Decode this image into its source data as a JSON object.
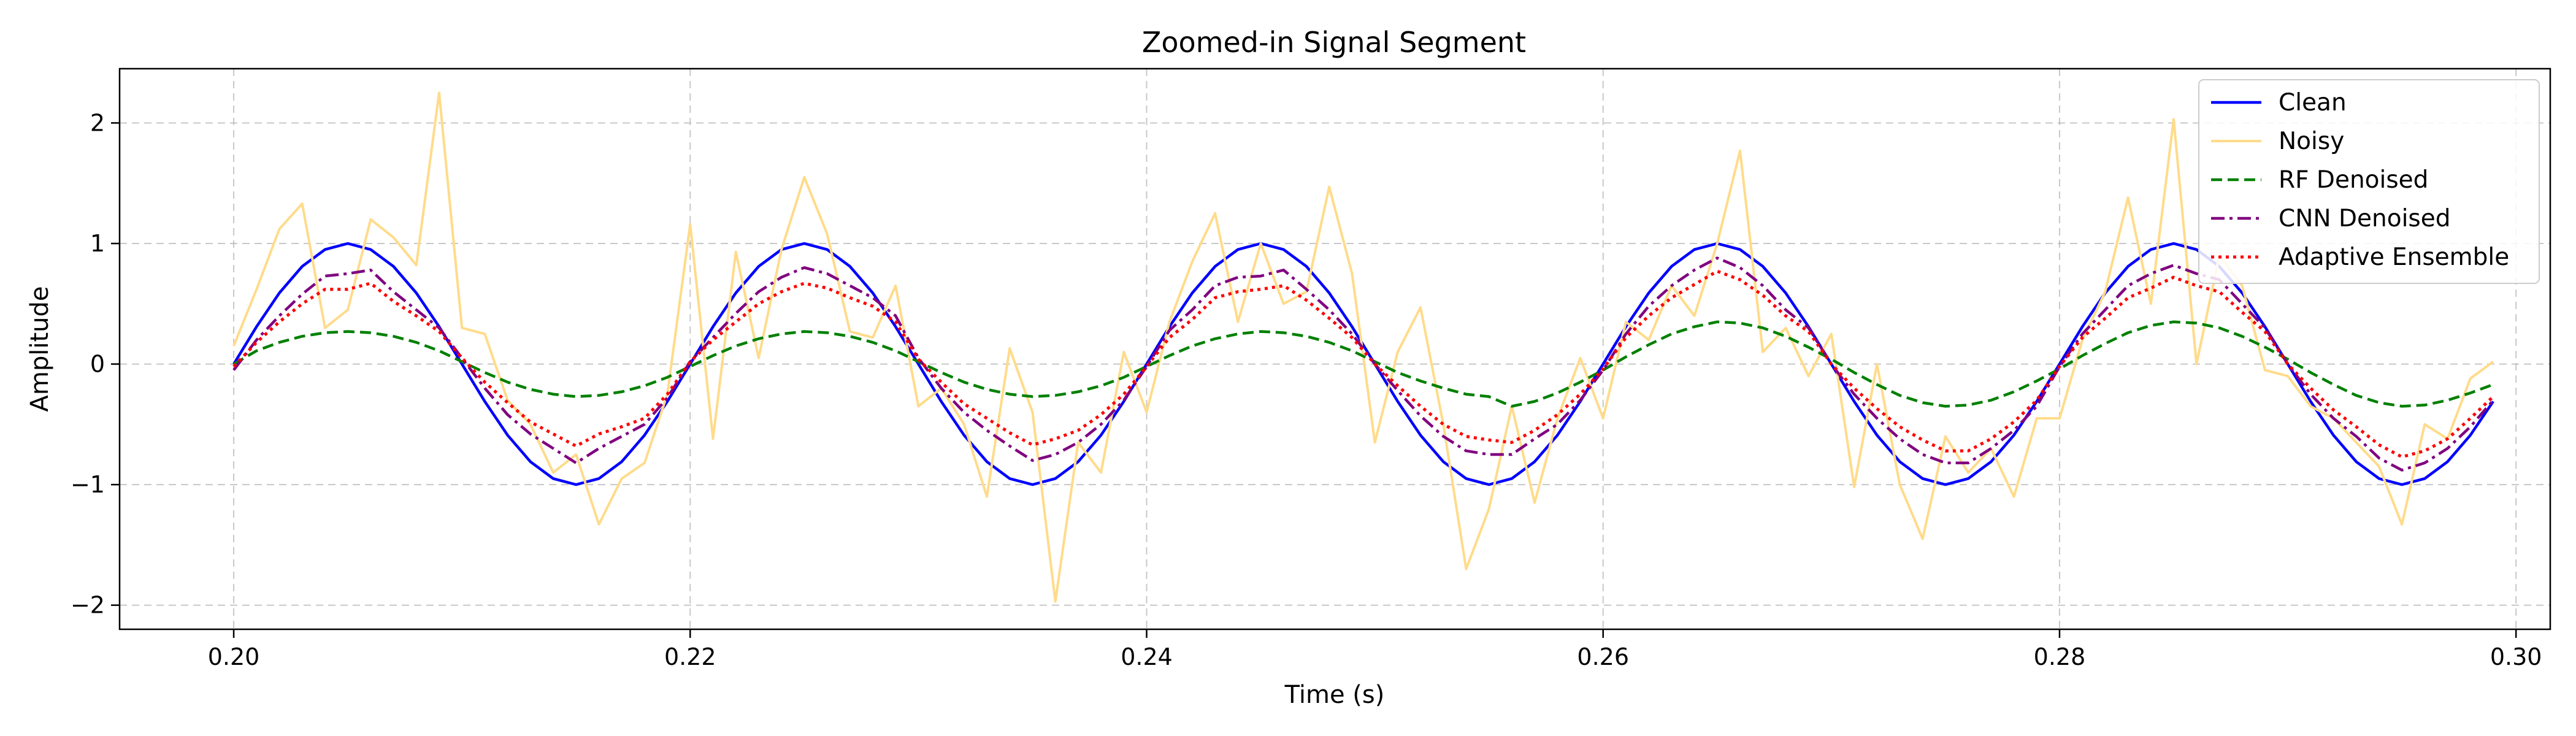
{
  "chart_data": {
    "type": "line",
    "title": "Zoomed-in Signal Segment",
    "xlabel": "Time (s)",
    "ylabel": "Amplitude",
    "xlim": [
      0.195,
      0.3015
    ],
    "ylim": [
      -2.2,
      2.45
    ],
    "grid": true,
    "legend_position": "top-right",
    "x_ticks": [
      0.2,
      0.22,
      0.24,
      0.26,
      0.28,
      0.3
    ],
    "x_tick_labels": [
      "0.20",
      "0.22",
      "0.24",
      "0.26",
      "0.28",
      "0.30"
    ],
    "y_ticks": [
      -2,
      -1,
      0,
      1,
      2
    ],
    "y_tick_labels": [
      "−2",
      "−1",
      "0",
      "1",
      "2"
    ],
    "x": [
      0.2,
      0.201,
      0.202,
      0.203,
      0.204,
      0.205,
      0.206,
      0.207,
      0.208,
      0.209,
      0.21,
      0.211,
      0.212,
      0.213,
      0.214,
      0.215,
      0.216,
      0.217,
      0.218,
      0.219,
      0.22,
      0.221,
      0.222,
      0.223,
      0.224,
      0.225,
      0.226,
      0.227,
      0.228,
      0.229,
      0.23,
      0.231,
      0.232,
      0.233,
      0.234,
      0.235,
      0.236,
      0.237,
      0.238,
      0.239,
      0.24,
      0.241,
      0.242,
      0.243,
      0.244,
      0.245,
      0.246,
      0.247,
      0.248,
      0.249,
      0.25,
      0.251,
      0.252,
      0.253,
      0.254,
      0.255,
      0.256,
      0.257,
      0.258,
      0.259,
      0.26,
      0.261,
      0.262,
      0.263,
      0.264,
      0.265,
      0.266,
      0.267,
      0.268,
      0.269,
      0.27,
      0.271,
      0.272,
      0.273,
      0.274,
      0.275,
      0.276,
      0.277,
      0.278,
      0.279,
      0.28,
      0.281,
      0.282,
      0.283,
      0.284,
      0.285,
      0.286,
      0.287,
      0.288,
      0.289,
      0.29,
      0.291,
      0.292,
      0.293,
      0.294,
      0.295,
      0.296,
      0.297,
      0.298,
      0.299
    ],
    "series": [
      {
        "name": "Clean",
        "color": "#0000ff",
        "style": "solid",
        "values": [
          0.0,
          0.31,
          0.59,
          0.81,
          0.95,
          1.0,
          0.95,
          0.81,
          0.59,
          0.31,
          0.0,
          -0.31,
          -0.59,
          -0.81,
          -0.95,
          -1.0,
          -0.95,
          -0.81,
          -0.59,
          -0.31,
          0.0,
          0.31,
          0.59,
          0.81,
          0.95,
          1.0,
          0.95,
          0.81,
          0.59,
          0.31,
          0.0,
          -0.31,
          -0.59,
          -0.81,
          -0.95,
          -1.0,
          -0.95,
          -0.81,
          -0.59,
          -0.31,
          0.0,
          0.31,
          0.59,
          0.81,
          0.95,
          1.0,
          0.95,
          0.81,
          0.59,
          0.31,
          0.0,
          -0.31,
          -0.59,
          -0.81,
          -0.95,
          -1.0,
          -0.95,
          -0.81,
          -0.59,
          -0.31,
          0.0,
          0.31,
          0.59,
          0.81,
          0.95,
          1.0,
          0.95,
          0.81,
          0.59,
          0.31,
          0.0,
          -0.31,
          -0.59,
          -0.81,
          -0.95,
          -1.0,
          -0.95,
          -0.81,
          -0.59,
          -0.31,
          0.0,
          0.31,
          0.59,
          0.81,
          0.95,
          1.0,
          0.95,
          0.81,
          0.59,
          0.31,
          0.0,
          -0.31,
          -0.59,
          -0.81,
          -0.95,
          -1.0,
          -0.95,
          -0.81,
          -0.59,
          -0.31
        ]
      },
      {
        "name": "Noisy",
        "color": "#ffdb8a",
        "style": "solid",
        "values": [
          0.15,
          0.62,
          1.12,
          1.33,
          0.3,
          0.45,
          1.2,
          1.05,
          0.82,
          2.25,
          0.3,
          0.25,
          -0.3,
          -0.5,
          -0.9,
          -0.75,
          -1.33,
          -0.95,
          -0.82,
          -0.25,
          1.16,
          -0.62,
          0.93,
          0.05,
          0.95,
          1.55,
          1.08,
          0.27,
          0.22,
          0.65,
          -0.35,
          -0.2,
          -0.5,
          -1.1,
          0.13,
          -0.4,
          -1.97,
          -0.65,
          -0.9,
          0.1,
          -0.4,
          0.35,
          0.85,
          1.25,
          0.35,
          1.0,
          0.5,
          0.6,
          1.47,
          0.75,
          -0.65,
          0.1,
          0.47,
          -0.5,
          -1.7,
          -1.2,
          -0.35,
          -1.15,
          -0.45,
          0.05,
          -0.45,
          0.35,
          0.2,
          0.65,
          0.4,
          1.0,
          1.77,
          0.1,
          0.3,
          -0.1,
          0.25,
          -1.02,
          0.0,
          -1.0,
          -1.45,
          -0.6,
          -0.9,
          -0.7,
          -1.1,
          -0.45,
          -0.45,
          0.2,
          0.6,
          1.38,
          0.5,
          2.03,
          0.0,
          0.9,
          0.65,
          -0.05,
          -0.1,
          -0.35,
          -0.45,
          -0.65,
          -0.85,
          -1.33,
          -0.5,
          -0.62,
          -0.12,
          0.02
        ]
      },
      {
        "name": "RF Denoised",
        "color": "#008000",
        "style": "dashed",
        "values": [
          0.0,
          0.11,
          0.18,
          0.23,
          0.26,
          0.27,
          0.26,
          0.23,
          0.18,
          0.11,
          0.02,
          -0.07,
          -0.15,
          -0.21,
          -0.25,
          -0.27,
          -0.26,
          -0.23,
          -0.18,
          -0.11,
          -0.02,
          0.07,
          0.15,
          0.21,
          0.25,
          0.27,
          0.26,
          0.23,
          0.18,
          0.11,
          0.02,
          -0.07,
          -0.15,
          -0.21,
          -0.25,
          -0.27,
          -0.26,
          -0.23,
          -0.18,
          -0.11,
          -0.02,
          0.07,
          0.15,
          0.21,
          0.25,
          0.27,
          0.26,
          0.23,
          0.18,
          0.11,
          0.02,
          -0.07,
          -0.14,
          -0.2,
          -0.25,
          -0.27,
          -0.35,
          -0.31,
          -0.24,
          -0.15,
          -0.05,
          0.06,
          0.16,
          0.25,
          0.31,
          0.35,
          0.34,
          0.3,
          0.23,
          0.14,
          0.04,
          -0.07,
          -0.17,
          -0.26,
          -0.32,
          -0.35,
          -0.34,
          -0.3,
          -0.23,
          -0.14,
          -0.04,
          0.07,
          0.17,
          0.26,
          0.32,
          0.35,
          0.34,
          0.3,
          0.23,
          0.14,
          0.04,
          -0.07,
          -0.17,
          -0.26,
          -0.32,
          -0.35,
          -0.34,
          -0.3,
          -0.24,
          -0.17
        ]
      },
      {
        "name": "CNN Denoised",
        "color": "#800080",
        "style": "dashdot",
        "values": [
          -0.05,
          0.2,
          0.4,
          0.58,
          0.73,
          0.75,
          0.78,
          0.6,
          0.45,
          0.3,
          0.05,
          -0.2,
          -0.42,
          -0.58,
          -0.7,
          -0.82,
          -0.7,
          -0.6,
          -0.5,
          -0.28,
          0.02,
          0.22,
          0.42,
          0.6,
          0.72,
          0.8,
          0.75,
          0.65,
          0.55,
          0.4,
          0.05,
          -0.2,
          -0.4,
          -0.55,
          -0.68,
          -0.8,
          -0.75,
          -0.65,
          -0.5,
          -0.3,
          -0.02,
          0.28,
          0.45,
          0.65,
          0.72,
          0.73,
          0.78,
          0.62,
          0.45,
          0.25,
          0.0,
          -0.22,
          -0.43,
          -0.6,
          -0.72,
          -0.75,
          -0.75,
          -0.62,
          -0.5,
          -0.3,
          -0.05,
          0.25,
          0.48,
          0.65,
          0.78,
          0.88,
          0.8,
          0.65,
          0.45,
          0.3,
          0.0,
          -0.25,
          -0.45,
          -0.62,
          -0.75,
          -0.82,
          -0.82,
          -0.7,
          -0.55,
          -0.35,
          -0.02,
          0.25,
          0.45,
          0.65,
          0.75,
          0.82,
          0.75,
          0.7,
          0.5,
          0.3,
          0.0,
          -0.25,
          -0.45,
          -0.6,
          -0.78,
          -0.88,
          -0.82,
          -0.7,
          -0.52,
          -0.3
        ]
      },
      {
        "name": "Adaptive Ensemble",
        "color": "#ff0000",
        "style": "dotted",
        "values": [
          -0.02,
          0.18,
          0.35,
          0.5,
          0.62,
          0.62,
          0.67,
          0.52,
          0.4,
          0.27,
          0.05,
          -0.15,
          -0.32,
          -0.48,
          -0.58,
          -0.68,
          -0.58,
          -0.52,
          -0.45,
          -0.25,
          0.02,
          0.2,
          0.35,
          0.5,
          0.6,
          0.67,
          0.63,
          0.55,
          0.48,
          0.35,
          0.04,
          -0.15,
          -0.33,
          -0.45,
          -0.57,
          -0.67,
          -0.62,
          -0.55,
          -0.42,
          -0.25,
          -0.02,
          0.22,
          0.37,
          0.55,
          0.6,
          0.62,
          0.65,
          0.53,
          0.38,
          0.22,
          0.0,
          -0.18,
          -0.35,
          -0.5,
          -0.6,
          -0.63,
          -0.65,
          -0.55,
          -0.42,
          -0.25,
          -0.04,
          0.22,
          0.4,
          0.55,
          0.66,
          0.77,
          0.7,
          0.57,
          0.4,
          0.27,
          0.0,
          -0.2,
          -0.37,
          -0.52,
          -0.63,
          -0.72,
          -0.72,
          -0.62,
          -0.48,
          -0.3,
          -0.02,
          0.22,
          0.38,
          0.55,
          0.63,
          0.72,
          0.65,
          0.6,
          0.43,
          0.27,
          0.0,
          -0.2,
          -0.38,
          -0.52,
          -0.67,
          -0.77,
          -0.72,
          -0.62,
          -0.45,
          -0.27
        ]
      }
    ]
  }
}
